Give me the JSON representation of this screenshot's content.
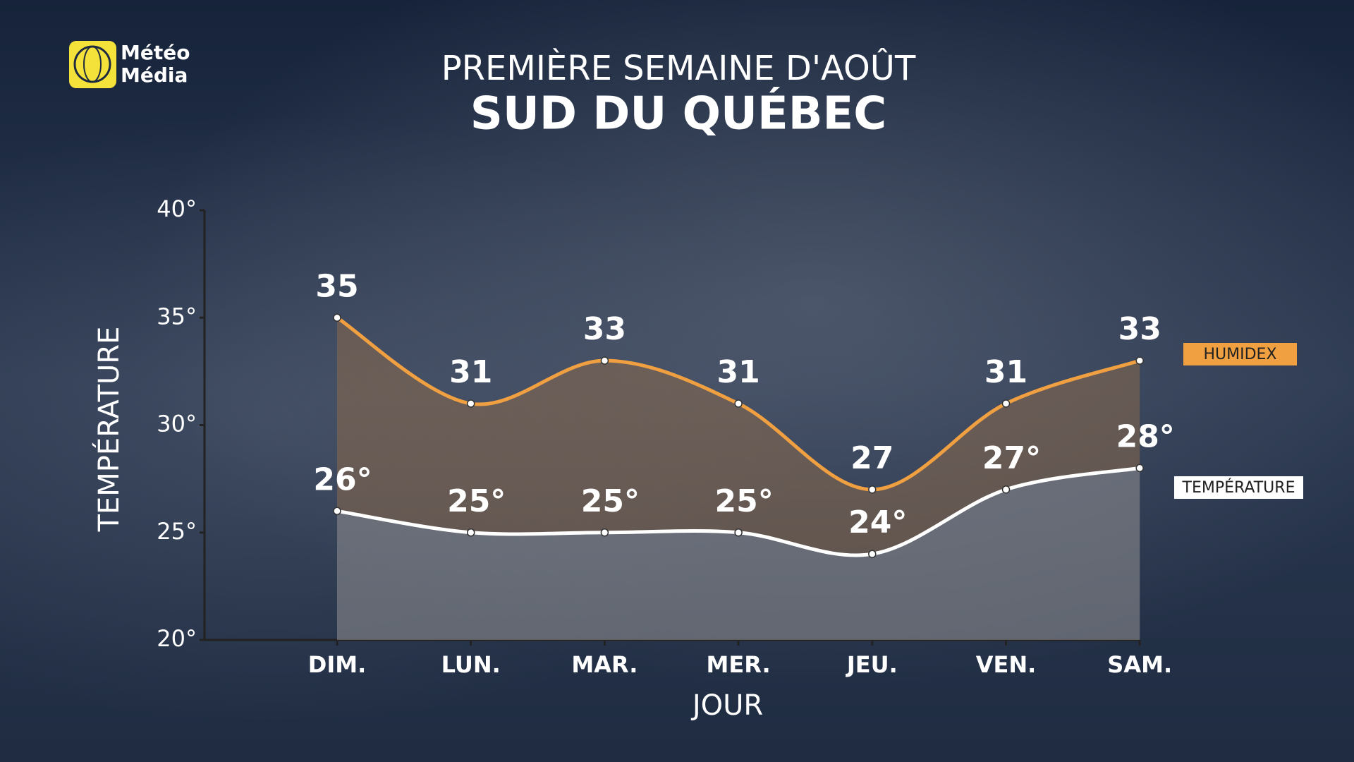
{
  "logo": [
    "Météo",
    "Média"
  ],
  "chart_data": {
    "type": "line",
    "title": "PREMIÈRE SEMAINE D'AOÛT",
    "subtitle": "SUD DU QUÉBEC",
    "y_label": "TEMPÉRATURE",
    "x_label": "JOUR",
    "categories": [
      "DIM.",
      "LUN.",
      "MAR.",
      "MER.",
      "JEU.",
      "VEN.",
      "SAM."
    ],
    "series": [
      {
        "name": "HUMIDEX",
        "color": "#f0a040",
        "values": [
          35,
          31,
          33,
          31,
          27,
          31,
          33
        ]
      },
      {
        "name": "TEMPÉRATURE",
        "color": "#ffffff",
        "values": [
          26,
          25,
          25,
          25,
          24,
          27,
          28
        ],
        "value_labels": [
          "26°",
          "25°",
          "25°",
          "25°",
          "24°",
          "27°",
          "28°"
        ]
      }
    ],
    "ylim": [
      20,
      40
    ],
    "yticks": [
      {
        "value": 20,
        "label": "20°"
      },
      {
        "value": 25,
        "label": "25°"
      },
      {
        "value": 30,
        "label": "30°"
      },
      {
        "value": 35,
        "label": "35°"
      },
      {
        "value": 40,
        "label": "40°"
      }
    ],
    "grid": false
  }
}
